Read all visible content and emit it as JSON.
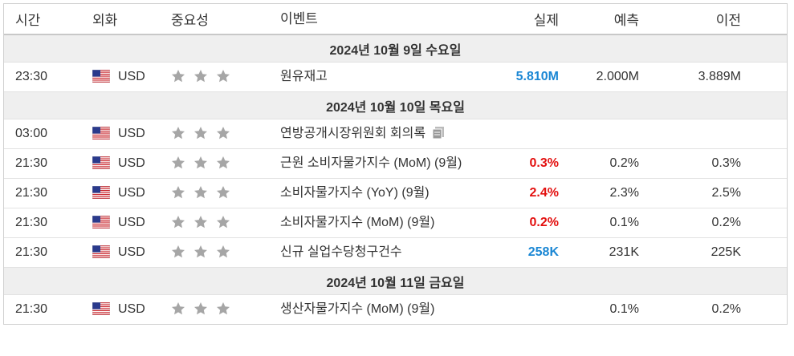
{
  "header": [
    "시간",
    "외화",
    "중요성",
    "이벤트",
    "실제",
    "예측",
    "이전"
  ],
  "sections": [
    {
      "date": "2024년 10월 9일 수요일",
      "rows": [
        {
          "time": "23:30",
          "currency": "USD",
          "event": "원유재고",
          "actual": "5.810M",
          "actual_color": "#1b87d4",
          "forecast": "2.000M",
          "previous": "3.889M"
        }
      ]
    },
    {
      "date": "2024년 10월 10일 목요일",
      "rows": [
        {
          "time": "03:00",
          "currency": "USD",
          "event": "연방공개시장위원회 회의록",
          "doc_icon": true
        },
        {
          "time": "21:30",
          "currency": "USD",
          "event": "근원 소비자물가지수 (MoM) (9월)",
          "actual": "0.3%",
          "actual_color": "#e3100f",
          "forecast": "0.2%",
          "previous": "0.3%"
        },
        {
          "time": "21:30",
          "currency": "USD",
          "event": "소비자물가지수 (YoY) (9월)",
          "actual": "2.4%",
          "actual_color": "#e3100f",
          "forecast": "2.3%",
          "previous": "2.5%"
        },
        {
          "time": "21:30",
          "currency": "USD",
          "event": "소비자물가지수 (MoM) (9월)",
          "actual": "0.2%",
          "actual_color": "#e3100f",
          "forecast": "0.1%",
          "previous": "0.2%"
        },
        {
          "time": "21:30",
          "currency": "USD",
          "event": "신규 실업수당청구건수",
          "actual": "258K",
          "actual_color": "#1b87d4",
          "forecast": "231K",
          "previous": "225K"
        }
      ]
    },
    {
      "date": "2024년 10월 11일 금요일",
      "rows": [
        {
          "time": "21:30",
          "currency": "USD",
          "event": "생산자물가지수 (MoM) (9월)",
          "forecast": "0.1%",
          "previous": "0.2%"
        }
      ]
    }
  ]
}
